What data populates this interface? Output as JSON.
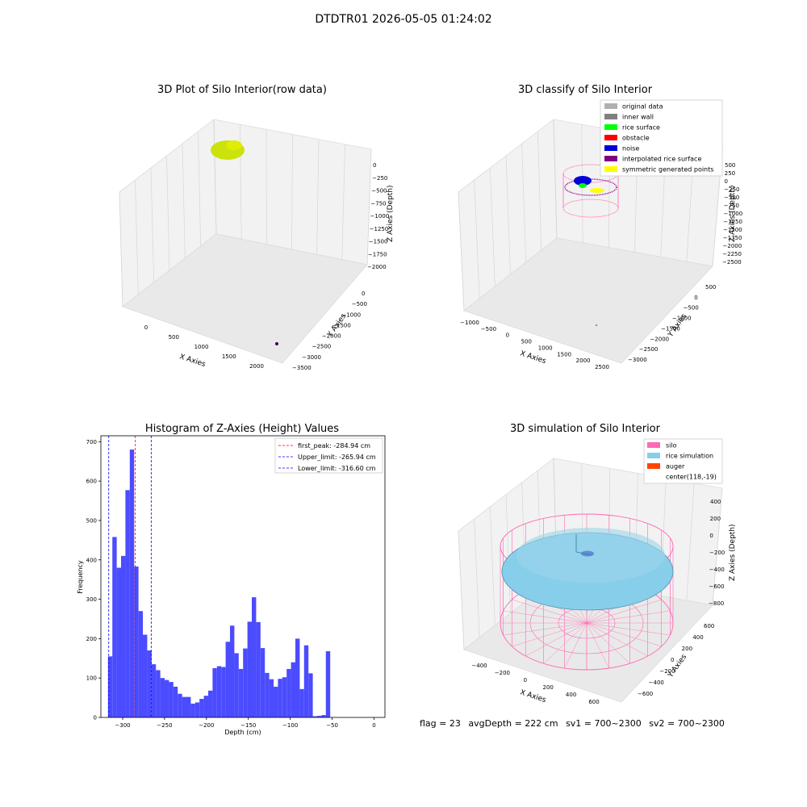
{
  "figure_title": "DTDTR01 2026-05-05 01:24:02",
  "colors": {
    "hist_bar": "#4b4bff",
    "first_peak_line": "#ff0000",
    "limit_lines": "#0000ff",
    "silo": "#ff69b4",
    "rice_simulation": "#87ceeb",
    "auger": "#ff4500",
    "rice_points": "#c8e000",
    "original_data": "#b0b0b0",
    "inner_wall": "#808080",
    "rice_surface": "#00ff00",
    "obstacle": "#ff0000",
    "noise": "#0000dd",
    "interpolated_rice_surface": "#800080",
    "symmetric_generated_points": "#ffff00"
  },
  "panel1": {
    "title": "3D Plot of Silo Interior(row data)",
    "x_label": "X Axies",
    "y_label": "Y Axies",
    "z_label": "Z Axies (Depth)",
    "x_ticks": [
      "0",
      "500",
      "1000",
      "1500",
      "2000"
    ],
    "y_ticks": [
      "0",
      "−500",
      "−1000",
      "−1500",
      "−2000",
      "−2500",
      "−3000",
      "−3500"
    ],
    "z_ticks": [
      "0",
      "−250",
      "−500",
      "−750",
      "−1000",
      "−1250",
      "−1500",
      "−1750",
      "−2000"
    ]
  },
  "panel2": {
    "title": "3D classify of Silo Interior",
    "x_label": "X Axies",
    "y_label": "Y Axies",
    "z_label": "Z Axies (Depth)",
    "x_ticks": [
      "−1000",
      "−500",
      "0",
      "500",
      "1000",
      "1500",
      "2000",
      "2500"
    ],
    "y_ticks": [
      "500",
      "0",
      "−500",
      "−1000",
      "−1500",
      "−2000",
      "−2500",
      "−3000"
    ],
    "z_ticks": [
      "500",
      "250",
      "0",
      "−250",
      "−500",
      "−750",
      "−1000",
      "−1250",
      "−1500",
      "−1750",
      "−2000",
      "−2250",
      "−2500"
    ],
    "legend": [
      "original data",
      "inner wall",
      "rice surface",
      "obstacle",
      "noise",
      "interpolated rice surface",
      "symmetric generated points"
    ]
  },
  "panel4": {
    "title": "3D simulation of Silo Interior",
    "x_label": "X Axies",
    "y_label": "Y Axies",
    "z_label": "Z Axies (Depth)",
    "x_ticks": [
      "−400",
      "−200",
      "0",
      "200",
      "400",
      "600"
    ],
    "y_ticks": [
      "600",
      "400",
      "200",
      "0",
      "−200",
      "−400",
      "−600"
    ],
    "z_ticks": [
      "400",
      "200",
      "0",
      "−200",
      "−400",
      "−600",
      "−800"
    ],
    "legend": [
      "silo",
      "rice simulation",
      "auger",
      "center(118,-19)"
    ]
  },
  "footer": {
    "flag": "flag = 23",
    "avg_depth": "avgDepth = 222 cm",
    "sv1": "sv1 = 700~2300",
    "sv2": "sv2 = 700~2300"
  },
  "chart_data": {
    "type": "bar",
    "title": "Histogram of Z-Axies (Height) Values",
    "xlabel": "Depth (cm)",
    "ylabel": "Frequency",
    "xlim": [
      -326,
      13
    ],
    "ylim": [
      0,
      715
    ],
    "x_ticks": [
      -300,
      -250,
      -200,
      -150,
      -100,
      -50,
      0
    ],
    "y_ticks": [
      0,
      100,
      200,
      300,
      400,
      500,
      600,
      700
    ],
    "bin_width": 5.2,
    "bins_start": -317.5,
    "values": [
      155,
      458,
      380,
      410,
      577,
      680,
      383,
      270,
      210,
      170,
      135,
      120,
      100,
      95,
      90,
      78,
      60,
      52,
      52,
      35,
      38,
      47,
      55,
      68,
      125,
      130,
      128,
      192,
      233,
      163,
      123,
      175,
      243,
      305,
      242,
      176,
      113,
      97,
      78,
      98,
      102,
      123,
      140,
      200,
      72,
      183,
      112,
      3,
      4,
      6,
      168
    ],
    "lines": [
      {
        "label": "first_peak: -284.94 cm",
        "x": -284.94,
        "color": "#ff0000"
      },
      {
        "label": "Upper_limit: -265.94 cm",
        "x": -265.94,
        "color": "#0000ff"
      },
      {
        "label": "Lower_limit: -316.60 cm",
        "x": -316.6,
        "color": "#0000ff"
      }
    ],
    "legend_position": "top-right"
  }
}
